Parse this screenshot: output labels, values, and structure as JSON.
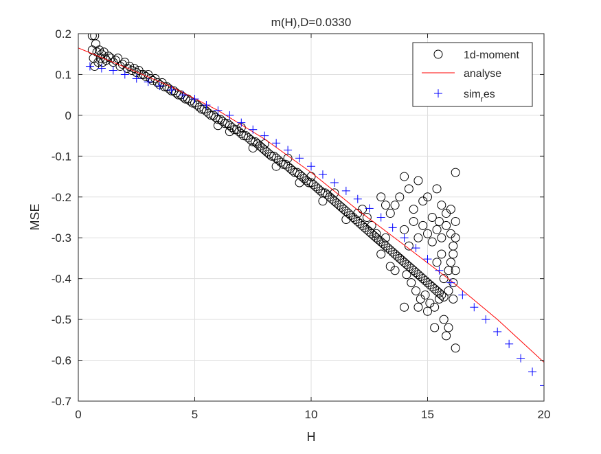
{
  "figure": {
    "background": "#ffffff"
  },
  "chart_data": {
    "type": "scatter",
    "title": "m(H),D=0.0330",
    "xlabel": "H",
    "ylabel": "MSE",
    "xlim": [
      0,
      20
    ],
    "ylim": [
      -0.7,
      0.2
    ],
    "xticks": [
      0,
      5,
      10,
      15,
      20
    ],
    "yticks": [
      0.2,
      0.1,
      0,
      -0.1,
      -0.2,
      -0.3,
      -0.4,
      -0.5,
      -0.6,
      -0.7
    ],
    "xtick_labels": [
      "0",
      "5",
      "10",
      "15",
      "20"
    ],
    "ytick_labels": [
      "0.2",
      "0.1",
      "0",
      "-0.1",
      "-0.2",
      "-0.3",
      "-0.4",
      "-0.5",
      "-0.6",
      "-0.7"
    ],
    "grid": true,
    "box": true,
    "legend": {
      "location": "top-right",
      "entries": [
        "1d-moment",
        "analyse",
        "sim_res"
      ]
    },
    "series": [
      {
        "name": "1d-moment",
        "marker": "circle",
        "color": "#000000",
        "points": [
          [
            0.6,
            0.195
          ],
          [
            0.7,
            0.195
          ],
          [
            0.6,
            0.16
          ],
          [
            0.65,
            0.14
          ],
          [
            0.7,
            0.12
          ],
          [
            0.75,
            0.175
          ],
          [
            0.8,
            0.155
          ],
          [
            0.85,
            0.13
          ],
          [
            0.9,
            0.16
          ],
          [
            0.95,
            0.14
          ],
          [
            1.0,
            0.15
          ],
          [
            1.05,
            0.13
          ],
          [
            1.1,
            0.155
          ],
          [
            1.15,
            0.14
          ],
          [
            1.2,
            0.135
          ],
          [
            1.3,
            0.145
          ],
          [
            1.4,
            0.14
          ],
          [
            1.5,
            0.13
          ],
          [
            1.6,
            0.135
          ],
          [
            1.7,
            0.14
          ],
          [
            1.8,
            0.12
          ],
          [
            1.9,
            0.125
          ],
          [
            2.0,
            0.13
          ],
          [
            2.1,
            0.115
          ],
          [
            2.2,
            0.12
          ],
          [
            2.3,
            0.11
          ],
          [
            2.4,
            0.115
          ],
          [
            2.5,
            0.105
          ],
          [
            2.6,
            0.11
          ],
          [
            2.7,
            0.1
          ],
          [
            2.8,
            0.1
          ],
          [
            2.9,
            0.095
          ],
          [
            3.0,
            0.1
          ],
          [
            3.1,
            0.09
          ],
          [
            3.2,
            0.085
          ],
          [
            3.3,
            0.09
          ],
          [
            3.4,
            0.08
          ],
          [
            3.5,
            0.075
          ],
          [
            3.6,
            0.08
          ],
          [
            3.7,
            0.07
          ],
          [
            3.8,
            0.07
          ],
          [
            3.9,
            0.065
          ],
          [
            4.0,
            0.06
          ],
          [
            4.1,
            0.06
          ],
          [
            4.2,
            0.055
          ],
          [
            4.3,
            0.05
          ],
          [
            4.4,
            0.05
          ],
          [
            4.5,
            0.045
          ],
          [
            4.6,
            0.04
          ],
          [
            4.7,
            0.04
          ],
          [
            4.8,
            0.035
          ],
          [
            4.9,
            0.03
          ],
          [
            5.0,
            0.03
          ],
          [
            5.1,
            0.025
          ],
          [
            5.2,
            0.02
          ],
          [
            5.3,
            0.015
          ],
          [
            5.4,
            0.015
          ],
          [
            5.5,
            0.01
          ],
          [
            5.6,
            0.005
          ],
          [
            5.7,
            0.0
          ],
          [
            5.8,
            0.0
          ],
          [
            5.9,
            -0.005
          ],
          [
            6.0,
            -0.01
          ],
          [
            6.1,
            -0.01
          ],
          [
            6.2,
            -0.015
          ],
          [
            6.3,
            -0.02
          ],
          [
            6.4,
            -0.02
          ],
          [
            6.5,
            -0.025
          ],
          [
            6.6,
            -0.03
          ],
          [
            6.7,
            -0.035
          ],
          [
            6.8,
            -0.035
          ],
          [
            6.9,
            -0.04
          ],
          [
            7.0,
            -0.045
          ],
          [
            7.1,
            -0.05
          ],
          [
            7.2,
            -0.05
          ],
          [
            7.3,
            -0.055
          ],
          [
            7.4,
            -0.06
          ],
          [
            7.5,
            -0.065
          ],
          [
            7.6,
            -0.065
          ],
          [
            7.7,
            -0.07
          ],
          [
            7.8,
            -0.075
          ],
          [
            7.9,
            -0.08
          ],
          [
            8.0,
            -0.085
          ],
          [
            8.1,
            -0.09
          ],
          [
            8.2,
            -0.095
          ],
          [
            8.3,
            -0.1
          ],
          [
            8.4,
            -0.1
          ],
          [
            8.5,
            -0.105
          ],
          [
            8.6,
            -0.11
          ],
          [
            8.7,
            -0.115
          ],
          [
            8.8,
            -0.12
          ],
          [
            8.9,
            -0.12
          ],
          [
            9.0,
            -0.125
          ],
          [
            9.1,
            -0.13
          ],
          [
            9.2,
            -0.135
          ],
          [
            9.3,
            -0.14
          ],
          [
            9.4,
            -0.14
          ],
          [
            9.5,
            -0.145
          ],
          [
            9.6,
            -0.15
          ],
          [
            9.7,
            -0.155
          ],
          [
            9.8,
            -0.16
          ],
          [
            9.9,
            -0.165
          ],
          [
            10.0,
            -0.165
          ],
          [
            10.1,
            -0.17
          ],
          [
            10.2,
            -0.175
          ],
          [
            10.3,
            -0.18
          ],
          [
            10.4,
            -0.185
          ],
          [
            10.5,
            -0.19
          ],
          [
            10.6,
            -0.19
          ],
          [
            10.7,
            -0.195
          ],
          [
            10.8,
            -0.2
          ],
          [
            10.9,
            -0.205
          ],
          [
            11.0,
            -0.21
          ],
          [
            11.1,
            -0.215
          ],
          [
            11.2,
            -0.22
          ],
          [
            11.3,
            -0.225
          ],
          [
            11.4,
            -0.23
          ],
          [
            11.5,
            -0.235
          ],
          [
            11.6,
            -0.24
          ],
          [
            11.7,
            -0.245
          ],
          [
            11.8,
            -0.25
          ],
          [
            11.9,
            -0.255
          ],
          [
            12.0,
            -0.26
          ],
          [
            12.1,
            -0.265
          ],
          [
            12.2,
            -0.27
          ],
          [
            12.3,
            -0.275
          ],
          [
            12.4,
            -0.28
          ],
          [
            12.5,
            -0.285
          ],
          [
            12.6,
            -0.29
          ],
          [
            12.7,
            -0.295
          ],
          [
            12.8,
            -0.3
          ],
          [
            12.9,
            -0.305
          ],
          [
            13.0,
            -0.31
          ],
          [
            13.1,
            -0.315
          ],
          [
            13.2,
            -0.32
          ],
          [
            13.3,
            -0.325
          ],
          [
            13.4,
            -0.33
          ],
          [
            13.5,
            -0.335
          ],
          [
            13.6,
            -0.34
          ],
          [
            13.7,
            -0.345
          ],
          [
            13.8,
            -0.35
          ],
          [
            13.9,
            -0.355
          ],
          [
            14.0,
            -0.36
          ],
          [
            14.1,
            -0.365
          ],
          [
            14.2,
            -0.37
          ],
          [
            14.3,
            -0.375
          ],
          [
            14.4,
            -0.38
          ],
          [
            14.5,
            -0.385
          ],
          [
            14.6,
            -0.39
          ],
          [
            14.7,
            -0.395
          ],
          [
            14.8,
            -0.4
          ],
          [
            14.9,
            -0.405
          ],
          [
            15.0,
            -0.41
          ],
          [
            15.1,
            -0.415
          ],
          [
            15.2,
            -0.42
          ],
          [
            15.3,
            -0.425
          ],
          [
            15.4,
            -0.43
          ],
          [
            15.5,
            -0.435
          ],
          [
            15.6,
            -0.44
          ],
          [
            15.7,
            -0.445
          ],
          [
            6.0,
            -0.025
          ],
          [
            6.5,
            -0.04
          ],
          [
            7.0,
            -0.03
          ],
          [
            7.5,
            -0.08
          ],
          [
            8.0,
            -0.07
          ],
          [
            8.5,
            -0.125
          ],
          [
            9.0,
            -0.105
          ],
          [
            9.5,
            -0.165
          ],
          [
            10.0,
            -0.15
          ],
          [
            10.5,
            -0.21
          ],
          [
            11.0,
            -0.19
          ],
          [
            11.5,
            -0.255
          ],
          [
            12.0,
            -0.24
          ],
          [
            12.2,
            -0.23
          ],
          [
            12.4,
            -0.25
          ],
          [
            12.6,
            -0.27
          ],
          [
            12.8,
            -0.29
          ],
          [
            13.0,
            -0.34
          ],
          [
            13.2,
            -0.3
          ],
          [
            13.4,
            -0.37
          ],
          [
            13.6,
            -0.38
          ],
          [
            13.8,
            -0.35
          ],
          [
            13.0,
            -0.2
          ],
          [
            13.2,
            -0.22
          ],
          [
            13.4,
            -0.24
          ],
          [
            13.6,
            -0.22
          ],
          [
            13.8,
            -0.2
          ],
          [
            14.0,
            -0.15
          ],
          [
            14.2,
            -0.18
          ],
          [
            14.4,
            -0.23
          ],
          [
            14.6,
            -0.16
          ],
          [
            14.8,
            -0.21
          ],
          [
            15.0,
            -0.2
          ],
          [
            15.2,
            -0.25
          ],
          [
            15.4,
            -0.18
          ],
          [
            15.6,
            -0.22
          ],
          [
            15.8,
            -0.24
          ],
          [
            16.0,
            -0.23
          ],
          [
            16.2,
            -0.14
          ],
          [
            15.5,
            -0.26
          ],
          [
            14.0,
            -0.28
          ],
          [
            14.2,
            -0.32
          ],
          [
            14.4,
            -0.26
          ],
          [
            14.6,
            -0.3
          ],
          [
            14.8,
            -0.27
          ],
          [
            15.0,
            -0.29
          ],
          [
            15.2,
            -0.31
          ],
          [
            15.4,
            -0.28
          ],
          [
            15.6,
            -0.3
          ],
          [
            15.8,
            -0.27
          ],
          [
            16.0,
            -0.29
          ],
          [
            16.1,
            -0.32
          ],
          [
            16.2,
            -0.3
          ],
          [
            14.1,
            -0.39
          ],
          [
            14.3,
            -0.41
          ],
          [
            14.5,
            -0.43
          ],
          [
            14.7,
            -0.45
          ],
          [
            14.9,
            -0.44
          ],
          [
            15.1,
            -0.46
          ],
          [
            15.3,
            -0.47
          ],
          [
            15.5,
            -0.45
          ],
          [
            15.7,
            -0.5
          ],
          [
            15.9,
            -0.52
          ],
          [
            16.1,
            -0.45
          ],
          [
            16.2,
            -0.57
          ],
          [
            15.3,
            -0.52
          ],
          [
            15.8,
            -0.54
          ],
          [
            14.0,
            -0.47
          ],
          [
            14.6,
            -0.47
          ],
          [
            15.0,
            -0.48
          ],
          [
            15.9,
            -0.38
          ],
          [
            16.0,
            -0.36
          ],
          [
            16.1,
            -0.34
          ],
          [
            16.2,
            -0.26
          ],
          [
            15.7,
            -0.4
          ],
          [
            15.9,
            -0.43
          ],
          [
            16.1,
            -0.41
          ],
          [
            16.2,
            -0.38
          ],
          [
            15.6,
            -0.34
          ],
          [
            15.4,
            -0.36
          ]
        ]
      },
      {
        "name": "analyse",
        "marker": "line",
        "color": "#ff0000",
        "points": [
          [
            0,
            0.165
          ],
          [
            2,
            0.118
          ],
          [
            4,
            0.07
          ],
          [
            6,
            0.012
          ],
          [
            8,
            -0.058
          ],
          [
            10,
            -0.14
          ],
          [
            12,
            -0.232
          ],
          [
            14,
            -0.318
          ],
          [
            16,
            -0.405
          ],
          [
            18,
            -0.5
          ],
          [
            20,
            -0.605
          ]
        ]
      },
      {
        "name": "sim_res",
        "marker": "plus",
        "color": "#0000ff",
        "points": [
          [
            0.5,
            0.12
          ],
          [
            1.0,
            0.115
          ],
          [
            1.5,
            0.11
          ],
          [
            2.0,
            0.1
          ],
          [
            2.5,
            0.09
          ],
          [
            3.0,
            0.082
          ],
          [
            3.5,
            0.072
          ],
          [
            4.0,
            0.062
          ],
          [
            4.5,
            0.05
          ],
          [
            5.0,
            0.04
          ],
          [
            5.5,
            0.025
          ],
          [
            6.0,
            0.012
          ],
          [
            6.5,
            0.0
          ],
          [
            7.0,
            -0.018
          ],
          [
            7.5,
            -0.035
          ],
          [
            8.0,
            -0.05
          ],
          [
            8.5,
            -0.068
          ],
          [
            9.0,
            -0.085
          ],
          [
            9.5,
            -0.105
          ],
          [
            10.0,
            -0.125
          ],
          [
            10.5,
            -0.145
          ],
          [
            11.0,
            -0.165
          ],
          [
            11.5,
            -0.185
          ],
          [
            12.0,
            -0.205
          ],
          [
            12.5,
            -0.228
          ],
          [
            13.0,
            -0.25
          ],
          [
            13.5,
            -0.275
          ],
          [
            14.0,
            -0.3
          ],
          [
            14.5,
            -0.325
          ],
          [
            15.0,
            -0.352
          ],
          [
            15.5,
            -0.38
          ],
          [
            16.0,
            -0.41
          ],
          [
            16.5,
            -0.44
          ],
          [
            17.0,
            -0.47
          ],
          [
            17.5,
            -0.5
          ],
          [
            18.0,
            -0.53
          ],
          [
            18.5,
            -0.56
          ],
          [
            19.0,
            -0.595
          ],
          [
            19.5,
            -0.628
          ],
          [
            20.0,
            -0.662
          ]
        ]
      }
    ]
  }
}
